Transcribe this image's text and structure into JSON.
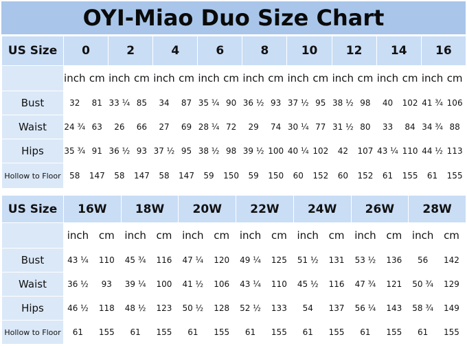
{
  "title": "OYI-Miao Duo Size Chart",
  "header_label": "US Size",
  "units": [
    "inch",
    "cm"
  ],
  "row_labels": [
    "Bust",
    "Waist",
    "Hips",
    "Hollow to Floor"
  ],
  "table1": {
    "sizes": [
      "0",
      "2",
      "4",
      "6",
      "8",
      "10",
      "12",
      "14",
      "16"
    ],
    "rows": [
      [
        "32",
        "81",
        "33 ¼",
        "85",
        "34",
        "87",
        "35 ¼",
        "90",
        "36 ½",
        "93",
        "37 ½",
        "95",
        "38 ½",
        "98",
        "40",
        "102",
        "41 ¾",
        "106"
      ],
      [
        "24 ¾",
        "63",
        "26",
        "66",
        "27",
        "69",
        "28 ¼",
        "72",
        "29",
        "74",
        "30 ¼",
        "77",
        "31 ½",
        "80",
        "33",
        "84",
        "34 ¾",
        "88"
      ],
      [
        "35 ¾",
        "91",
        "36 ½",
        "93",
        "37 ½",
        "95",
        "38 ½",
        "98",
        "39 ½",
        "100",
        "40 ¼",
        "102",
        "42",
        "107",
        "43 ¼",
        "110",
        "44 ½",
        "113"
      ],
      [
        "58",
        "147",
        "58",
        "147",
        "58",
        "147",
        "59",
        "150",
        "59",
        "150",
        "60",
        "152",
        "60",
        "152",
        "61",
        "155",
        "61",
        "155"
      ]
    ]
  },
  "table2": {
    "sizes": [
      "16W",
      "18W",
      "20W",
      "22W",
      "24W",
      "26W",
      "28W"
    ],
    "rows": [
      [
        "43 ¼",
        "110",
        "45 ¾",
        "116",
        "47 ¼",
        "120",
        "49 ¼",
        "125",
        "51 ½",
        "131",
        "53 ½",
        "136",
        "56",
        "142"
      ],
      [
        "36 ½",
        "93",
        "39 ¼",
        "100",
        "41 ½",
        "106",
        "43 ¼",
        "110",
        "45 ½",
        "116",
        "47 ¾",
        "121",
        "50 ¾",
        "129"
      ],
      [
        "46 ½",
        "118",
        "48 ½",
        "123",
        "50 ½",
        "128",
        "52 ½",
        "133",
        "54",
        "137",
        "56 ¼",
        "143",
        "58 ¾",
        "149"
      ],
      [
        "61",
        "155",
        "61",
        "155",
        "61",
        "155",
        "61",
        "155",
        "61",
        "155",
        "61",
        "155",
        "61",
        "155"
      ]
    ]
  },
  "colors": {
    "title_bg": "#a9c6ea",
    "header_bg": "#c9ddf5",
    "label_bg": "#dbe8f7",
    "cell_bg": "#ffffff"
  }
}
